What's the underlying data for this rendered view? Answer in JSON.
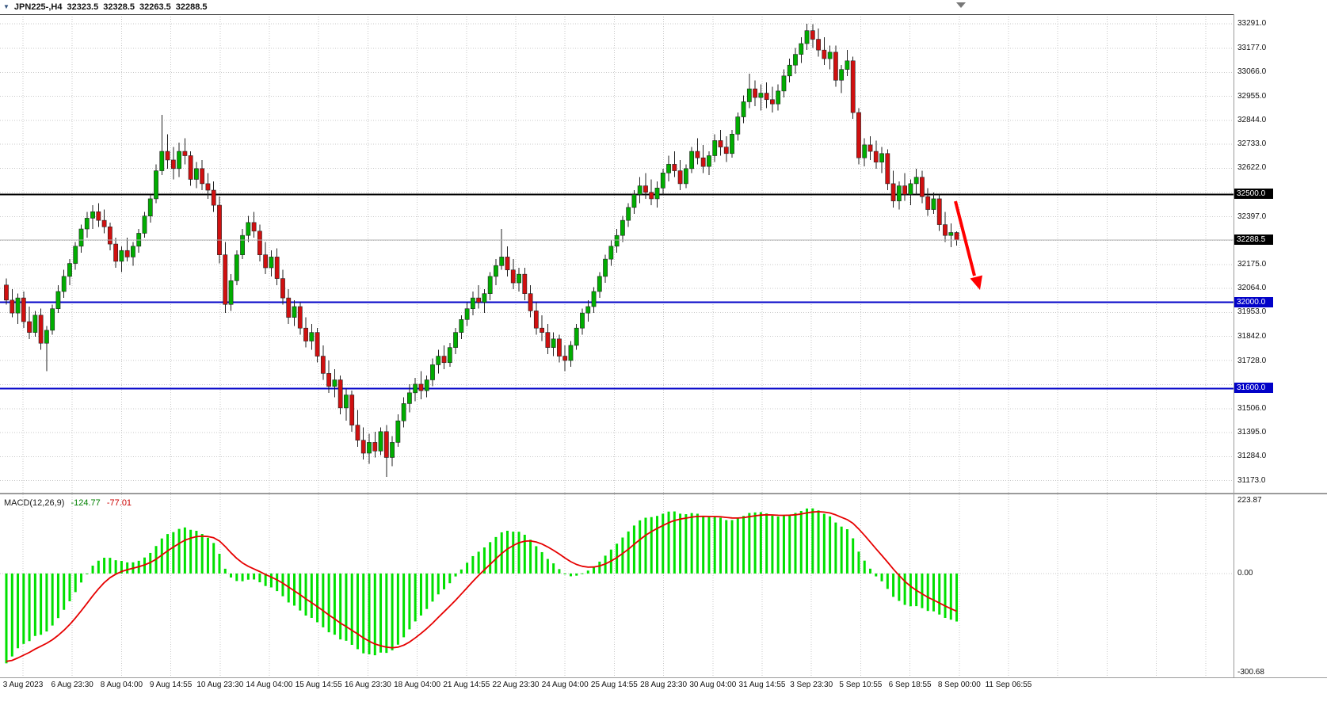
{
  "symbol_bar": {
    "symbol": "JPN225-,H4",
    "open": "32323.5",
    "high": "32328.5",
    "low": "32263.5",
    "close": "32288.5"
  },
  "chart_data": [
    {
      "id": "price_panel",
      "type": "candlestick",
      "symbol": "JPN225-",
      "timeframe": "H4",
      "ylim": [
        31120,
        33336
      ],
      "y_tick_labels": [
        "33291.0",
        "33177.0",
        "33066.0",
        "32955.0",
        "32844.0",
        "32733.0",
        "32622.0",
        "32397.0",
        "32175.0",
        "32064.0",
        "31953.0",
        "31842.0",
        "31728.0",
        "31506.0",
        "31395.0",
        "31284.0",
        "31173.0"
      ],
      "grid_prices": [
        33291,
        33178,
        33066,
        32955,
        32844,
        32733,
        32622,
        32510,
        32397,
        32286,
        32175,
        32064,
        31953,
        31842,
        31730,
        31618,
        31506,
        31395,
        31284,
        31173
      ],
      "x_labels": [
        "3 Aug 2023",
        "6 Aug 23:30",
        "8 Aug 04:00",
        "9 Aug 14:55",
        "10 Aug 23:30",
        "14 Aug 04:00",
        "15 Aug 14:55",
        "16 Aug 23:30",
        "18 Aug 04:00",
        "21 Aug 14:55",
        "22 Aug 23:30",
        "24 Aug 04:00",
        "25 Aug 14:55",
        "28 Aug 23:30",
        "30 Aug 04:00",
        "31 Aug 14:55",
        "3 Sep 23:30",
        "5 Sep 10:55",
        "6 Sep 18:55",
        "8 Sep 00:00",
        "11 Sep 06:55"
      ],
      "hlines": [
        {
          "price": 32500.0,
          "label": "32500.0",
          "color": "#000000",
          "width": 2
        },
        {
          "price": 32000.0,
          "label": "32000.0",
          "color": "#0202c8",
          "width": 2
        },
        {
          "price": 31600.0,
          "label": "31600.0",
          "color": "#0202c8",
          "width": 2
        }
      ],
      "bid": {
        "price": 32288.5,
        "label": "32288.5",
        "badge_color": "#000000"
      },
      "annotations": [
        {
          "type": "arrow-down",
          "color": "#ff0000"
        }
      ],
      "colors": {
        "bull": "#00ad00",
        "bear": "#d01010",
        "wick": "#222222",
        "grid": "#c9c9c9",
        "bid_line": "#b0b0b0",
        "arrow": "#ff0000"
      },
      "candles": [
        [
          32080,
          32110,
          31990,
          32010
        ],
        [
          32010,
          32060,
          31930,
          31950
        ],
        [
          31950,
          32040,
          31900,
          32020
        ],
        [
          32020,
          32050,
          31880,
          31910
        ],
        [
          31910,
          31980,
          31830,
          31860
        ],
        [
          31860,
          31960,
          31840,
          31940
        ],
        [
          31940,
          31970,
          31780,
          31810
        ],
        [
          31810,
          31890,
          31680,
          31870
        ],
        [
          31870,
          31990,
          31850,
          31970
        ],
        [
          31970,
          32080,
          31950,
          32050
        ],
        [
          32050,
          32150,
          32020,
          32120
        ],
        [
          32120,
          32200,
          32080,
          32180
        ],
        [
          32180,
          32280,
          32150,
          32260
        ],
        [
          32260,
          32360,
          32230,
          32340
        ],
        [
          32340,
          32420,
          32300,
          32390
        ],
        [
          32390,
          32450,
          32340,
          32420
        ],
        [
          32420,
          32460,
          32350,
          32380
        ],
        [
          32380,
          32430,
          32320,
          32350
        ],
        [
          32350,
          32370,
          32240,
          32270
        ],
        [
          32270,
          32300,
          32160,
          32190
        ],
        [
          32190,
          32260,
          32140,
          32240
        ],
        [
          32240,
          32300,
          32190,
          32210
        ],
        [
          32210,
          32280,
          32170,
          32260
        ],
        [
          32260,
          32340,
          32230,
          32320
        ],
        [
          32320,
          32420,
          32300,
          32400
        ],
        [
          32400,
          32500,
          32370,
          32480
        ],
        [
          32480,
          32640,
          32460,
          32610
        ],
        [
          32610,
          32870,
          32590,
          32700
        ],
        [
          32700,
          32780,
          32620,
          32660
        ],
        [
          32660,
          32720,
          32570,
          32620
        ],
        [
          32620,
          32740,
          32580,
          32700
        ],
        [
          32700,
          32760,
          32640,
          32680
        ],
        [
          32680,
          32700,
          32540,
          32570
        ],
        [
          32570,
          32650,
          32530,
          32620
        ],
        [
          32620,
          32660,
          32520,
          32550
        ],
        [
          32550,
          32600,
          32480,
          32520
        ],
        [
          32520,
          32560,
          32420,
          32450
        ],
        [
          32450,
          32490,
          32180,
          32220
        ],
        [
          32220,
          32280,
          31950,
          31990
        ],
        [
          31990,
          32130,
          31960,
          32100
        ],
        [
          32100,
          32240,
          32080,
          32220
        ],
        [
          32220,
          32340,
          32200,
          32310
        ],
        [
          32310,
          32400,
          32280,
          32370
        ],
        [
          32370,
          32420,
          32300,
          32330
        ],
        [
          32330,
          32360,
          32190,
          32220
        ],
        [
          32220,
          32280,
          32130,
          32160
        ],
        [
          32160,
          32240,
          32120,
          32210
        ],
        [
          32210,
          32250,
          32080,
          32110
        ],
        [
          32110,
          32150,
          31990,
          32020
        ],
        [
          32020,
          32060,
          31900,
          31930
        ],
        [
          31930,
          32010,
          31890,
          31980
        ],
        [
          31980,
          32000,
          31850,
          31880
        ],
        [
          31880,
          31930,
          31790,
          31820
        ],
        [
          31820,
          31900,
          31780,
          31860
        ],
        [
          31860,
          31880,
          31720,
          31750
        ],
        [
          31750,
          31800,
          31640,
          31670
        ],
        [
          31670,
          31730,
          31580,
          31610
        ],
        [
          31610,
          31690,
          31560,
          31640
        ],
        [
          31640,
          31660,
          31480,
          31510
        ],
        [
          31510,
          31600,
          31450,
          31570
        ],
        [
          31570,
          31590,
          31400,
          31430
        ],
        [
          31430,
          31500,
          31330,
          31360
        ],
        [
          31360,
          31420,
          31270,
          31300
        ],
        [
          31300,
          31390,
          31250,
          31350
        ],
        [
          31350,
          31400,
          31280,
          31310
        ],
        [
          31310,
          31420,
          31290,
          31400
        ],
        [
          31400,
          31430,
          31190,
          31280
        ],
        [
          31280,
          31380,
          31240,
          31350
        ],
        [
          31350,
          31480,
          31330,
          31450
        ],
        [
          31450,
          31560,
          31420,
          31530
        ],
        [
          31530,
          31620,
          31490,
          31580
        ],
        [
          31580,
          31650,
          31540,
          31620
        ],
        [
          31620,
          31680,
          31550,
          31590
        ],
        [
          31590,
          31660,
          31560,
          31640
        ],
        [
          31640,
          31740,
          31610,
          31710
        ],
        [
          31710,
          31780,
          31670,
          31750
        ],
        [
          31750,
          31800,
          31690,
          31720
        ],
        [
          31720,
          31810,
          31700,
          31790
        ],
        [
          31790,
          31880,
          31760,
          31860
        ],
        [
          31860,
          31940,
          31830,
          31920
        ],
        [
          31920,
          32000,
          31890,
          31970
        ],
        [
          31970,
          32050,
          31940,
          32020
        ],
        [
          32020,
          32080,
          31970,
          32000
        ],
        [
          32000,
          32060,
          31950,
          32040
        ],
        [
          32040,
          32140,
          32010,
          32120
        ],
        [
          32120,
          32200,
          32080,
          32170
        ],
        [
          32170,
          32340,
          32150,
          32210
        ],
        [
          32210,
          32260,
          32120,
          32150
        ],
        [
          32150,
          32200,
          32060,
          32090
        ],
        [
          32090,
          32160,
          32050,
          32130
        ],
        [
          32130,
          32160,
          32010,
          32040
        ],
        [
          32040,
          32080,
          31930,
          31960
        ],
        [
          31960,
          32000,
          31850,
          31880
        ],
        [
          31880,
          31940,
          31820,
          31860
        ],
        [
          31860,
          31900,
          31760,
          31790
        ],
        [
          31790,
          31860,
          31750,
          31830
        ],
        [
          31830,
          31850,
          31720,
          31750
        ],
        [
          31750,
          31800,
          31680,
          31730
        ],
        [
          31730,
          31820,
          31700,
          31800
        ],
        [
          31800,
          31900,
          31780,
          31880
        ],
        [
          31880,
          31970,
          31850,
          31950
        ],
        [
          31950,
          32010,
          31910,
          31980
        ],
        [
          31980,
          32070,
          31950,
          32050
        ],
        [
          32050,
          32140,
          32020,
          32120
        ],
        [
          32120,
          32220,
          32090,
          32200
        ],
        [
          32200,
          32290,
          32170,
          32260
        ],
        [
          32260,
          32340,
          32230,
          32310
        ],
        [
          32310,
          32400,
          32280,
          32380
        ],
        [
          32380,
          32460,
          32350,
          32440
        ],
        [
          32440,
          32520,
          32410,
          32500
        ],
        [
          32500,
          32580,
          32460,
          32540
        ],
        [
          32540,
          32600,
          32480,
          32510
        ],
        [
          32510,
          32570,
          32450,
          32480
        ],
        [
          32480,
          32560,
          32440,
          32530
        ],
        [
          32530,
          32620,
          32500,
          32600
        ],
        [
          32600,
          32680,
          32560,
          32640
        ],
        [
          32640,
          32700,
          32580,
          32610
        ],
        [
          32610,
          32660,
          32520,
          32550
        ],
        [
          32550,
          32640,
          32530,
          32620
        ],
        [
          32620,
          32720,
          32600,
          32700
        ],
        [
          32700,
          32760,
          32640,
          32670
        ],
        [
          32670,
          32730,
          32600,
          32630
        ],
        [
          32630,
          32700,
          32590,
          32680
        ],
        [
          32680,
          32780,
          32650,
          32750
        ],
        [
          32750,
          32800,
          32680,
          32720
        ],
        [
          32720,
          32770,
          32650,
          32690
        ],
        [
          32690,
          32800,
          32670,
          32780
        ],
        [
          32780,
          32880,
          32750,
          32860
        ],
        [
          32860,
          32960,
          32830,
          32930
        ],
        [
          32930,
          33060,
          32900,
          32990
        ],
        [
          32990,
          33030,
          32910,
          32950
        ],
        [
          32950,
          33010,
          32890,
          32970
        ],
        [
          32970,
          33020,
          32900,
          32940
        ],
        [
          32940,
          33000,
          32880,
          32920
        ],
        [
          32920,
          33010,
          32890,
          32980
        ],
        [
          32980,
          33080,
          32950,
          33050
        ],
        [
          33050,
          33130,
          33020,
          33100
        ],
        [
          33100,
          33180,
          33060,
          33150
        ],
        [
          33150,
          33230,
          33110,
          33200
        ],
        [
          33200,
          33291,
          33170,
          33260
        ],
        [
          33260,
          33290,
          33180,
          33220
        ],
        [
          33220,
          33270,
          33140,
          33170
        ],
        [
          33170,
          33230,
          33100,
          33130
        ],
        [
          33130,
          33190,
          33080,
          33160
        ],
        [
          33160,
          33190,
          33000,
          33030
        ],
        [
          33030,
          33100,
          32970,
          33080
        ],
        [
          33080,
          33170,
          33050,
          33120
        ],
        [
          33120,
          33140,
          32850,
          32880
        ],
        [
          32880,
          32900,
          32640,
          32670
        ],
        [
          32670,
          32760,
          32630,
          32730
        ],
        [
          32730,
          32770,
          32660,
          32700
        ],
        [
          32700,
          32750,
          32620,
          32650
        ],
        [
          32650,
          32720,
          32600,
          32690
        ],
        [
          32690,
          32710,
          32520,
          32550
        ],
        [
          32550,
          32610,
          32440,
          32470
        ],
        [
          32470,
          32560,
          32430,
          32540
        ],
        [
          32540,
          32600,
          32470,
          32500
        ],
        [
          32500,
          32570,
          32450,
          32550
        ],
        [
          32550,
          32620,
          32500,
          32580
        ],
        [
          32580,
          32610,
          32460,
          32490
        ],
        [
          32490,
          32530,
          32400,
          32430
        ],
        [
          32430,
          32510,
          32410,
          32480
        ],
        [
          32480,
          32500,
          32330,
          32360
        ],
        [
          32360,
          32420,
          32280,
          32310
        ],
        [
          32310,
          32365,
          32255,
          32323.5
        ],
        [
          32323.5,
          32328.5,
          32263.5,
          32288.5
        ]
      ]
    },
    {
      "id": "macd_panel",
      "type": "macd",
      "params_label": "MACD(12,26,9)",
      "macd_value": "-124.77",
      "signal_value": "-77.01",
      "params": {
        "fast": 12,
        "slow": 26,
        "signal": 9
      },
      "ylim": [
        -300.68,
        223.87
      ],
      "y_ticks": [
        223.87,
        0,
        -300.68
      ],
      "y_tick_labels": [
        "223.87",
        "0.00",
        "-300.68"
      ],
      "colors": {
        "histogram": "#00e000",
        "signal": "#e60000"
      }
    }
  ]
}
